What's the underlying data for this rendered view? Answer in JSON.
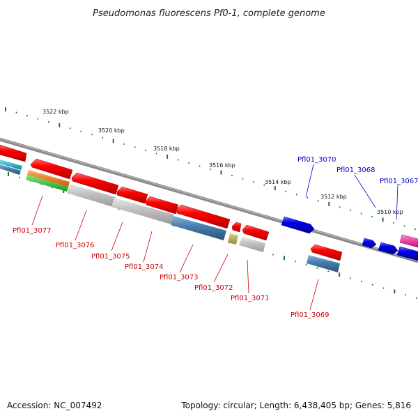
{
  "title": "Pseudomonas fluorescens Pf0-1, complete genome",
  "footer": {
    "accession": "Accession: NC_007492",
    "topology": "Topology: circular; Length: 6,438,405 bp; Genes: 5,816"
  },
  "scale_ticks": [
    {
      "label": "3522 kbp"
    },
    {
      "label": "3520 kbp"
    },
    {
      "label": "3518 kbp"
    },
    {
      "label": "3516 kbp"
    },
    {
      "label": "3514 kbp"
    },
    {
      "label": "3512 kbp"
    },
    {
      "label": "3510 kbp"
    }
  ],
  "genes": [
    {
      "label": "Pfl01_3077",
      "color": "#cc0000",
      "strand": "reverse"
    },
    {
      "label": "Pfl01_3076",
      "color": "#cc0000",
      "strand": "reverse"
    },
    {
      "label": "Pfl01_3075",
      "color": "#cc0000",
      "strand": "reverse"
    },
    {
      "label": "Pfl01_3074",
      "color": "#cc0000",
      "strand": "reverse"
    },
    {
      "label": "Pfl01_3073",
      "color": "#cc0000",
      "strand": "reverse"
    },
    {
      "label": "Pfl01_3072",
      "color": "#cc0000",
      "strand": "reverse"
    },
    {
      "label": "Pfl01_3071",
      "color": "#cc0000",
      "strand": "reverse"
    },
    {
      "label": "Pfl01_3069",
      "color": "#cc0000",
      "strand": "reverse"
    },
    {
      "label": "Pfl01_3070",
      "color": "#0000cc",
      "strand": "forward"
    },
    {
      "label": "Pfl01_3068",
      "color": "#0000cc",
      "strand": "forward"
    },
    {
      "label": "Pfl01_3067",
      "color": "#0000cc",
      "strand": "forward"
    }
  ],
  "colors": {
    "backbone": "#7a7a7a",
    "tick": "#1a7a1a",
    "reverse_gene": "#ff0000",
    "forward_gene": "#0000ee",
    "feature_gray": "#bdbdbd",
    "feature_steelblue": "#4a7fb0",
    "feature_olive": "#b5a855",
    "feature_orange": "#f07a10",
    "feature_green": "#33cc33",
    "feature_cyan": "#00b8c8",
    "feature_magenta": "#ff2a9a"
  }
}
